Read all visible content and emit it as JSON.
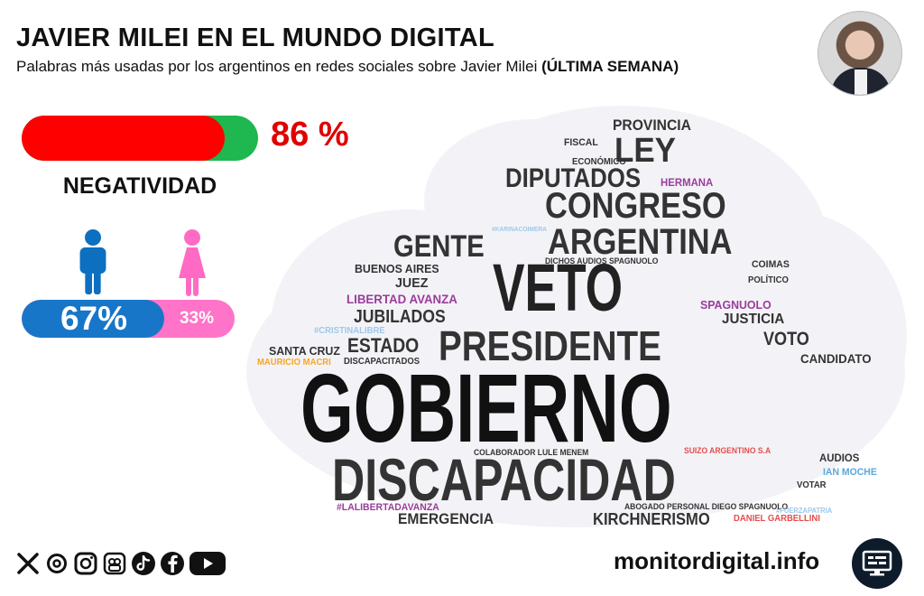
{
  "header": {
    "title": "JAVIER MILEI EN EL MUNDO DIGITAL",
    "subtitle_text": "Palabras más usadas por los argentinos en redes sociales sobre Javier Milei",
    "subtitle_bold": "(ÚLTIMA SEMANA)"
  },
  "negativity": {
    "percent_text": "86 %",
    "value": 86,
    "label": "NEGATIVIDAD",
    "colors": {
      "negative": "#ff0000",
      "positive": "#1fb74f"
    }
  },
  "gender": {
    "male_text": "67%",
    "female_text": "33%",
    "male_value": 67,
    "female_value": 33,
    "colors": {
      "male": "#1876c9",
      "female": "#ff73c8"
    }
  },
  "word_cloud": [
    "PROVINCIA",
    "FISCAL",
    "LEY",
    "ECONÓMICO",
    "DIPUTADOS",
    "HERMANA",
    "CONGRESO",
    "GENTE",
    "ARGENTINA",
    "BUENOS AIRES",
    "DICHOS AUDIOS SPAGNUOLO",
    "COIMAS",
    "JUEZ",
    "VETO",
    "POLÍTICO",
    "LIBERTAD AVANZA",
    "SPAGNUOLO",
    "JUBILADOS",
    "JUSTICIA",
    "#CRISTINALIBRE",
    "PRESIDENTE",
    "VOTO",
    "SANTA CRUZ",
    "ESTADO",
    "CANDIDATO",
    "MAURICIO MACRI",
    "DISCAPACITADOS",
    "GOBIERNO",
    "COLABORADOR LULE MENEM",
    "SUIZO ARGENTINO S.A",
    "AUDIOS",
    "DISCAPACIDAD",
    "IAN MOCHE",
    "VOTAR",
    "ABOGADO PERSONAL DIEGO SPAGNUOLO",
    "#LALIBERTADAVANZA",
    "#FUERZAPATRIA",
    "EMERGENCIA",
    "KIRCHNERISMO",
    "DANIEL GARBELLINI",
    "#KARINACOIMERA"
  ],
  "icons": [
    "x-icon",
    "threads-icon",
    "instagram-icon",
    "kwai-icon",
    "tiktok-icon",
    "facebook-icon",
    "youtube-icon"
  ],
  "footer": {
    "site": "monitordigital.info"
  }
}
